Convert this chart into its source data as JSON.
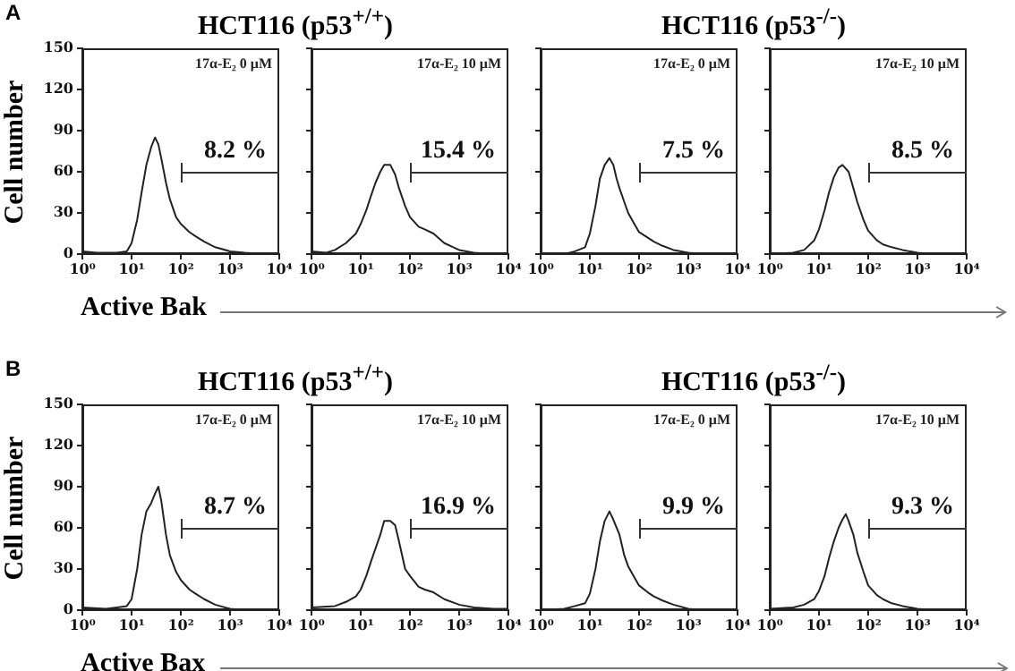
{
  "chart_data": [
    {
      "type": "line",
      "title": "17α-E₂ 0 μM",
      "ylabel": "Cell number",
      "xlabel": "Active Bak",
      "log": "x",
      "xlim": [
        1,
        10000
      ],
      "xticks": [
        {
          "value": 1,
          "label": "10⁰"
        },
        {
          "value": 10,
          "label": "10¹"
        },
        {
          "value": 100,
          "label": "10²"
        },
        {
          "value": 1000,
          "label": "10³"
        },
        {
          "value": 10000,
          "label": "10⁴"
        }
      ],
      "ylim": [
        0,
        150
      ],
      "yticks": [
        0,
        30,
        60,
        90,
        120,
        150
      ],
      "annotations": [
        "A",
        "HCT116 (p53$^{+/+}$)",
        "8.2 %"
      ],
      "x": [
        1,
        2,
        5,
        8,
        10,
        13,
        16,
        20,
        25,
        30,
        35,
        40,
        50,
        60,
        80,
        100,
        150,
        200,
        300,
        500,
        1000,
        2000,
        5000,
        10000
      ],
      "series": [
        {
          "color": "#222222",
          "values": [
            2,
            1,
            1,
            2,
            8,
            25,
            45,
            65,
            78,
            85,
            80,
            70,
            52,
            40,
            27,
            22,
            16,
            13,
            9,
            5,
            2,
            1,
            0,
            0
          ]
        }
      ]
    },
    {
      "type": "line",
      "title": "17α-E₂ 10 μM",
      "tick_labels": "x",
      "log": "x",
      "xlim": [
        1,
        10000
      ],
      "xticks": [
        {
          "value": 1,
          "label": "10⁰"
        },
        {
          "value": 10,
          "label": "10¹"
        },
        {
          "value": 100,
          "label": "10²"
        },
        {
          "value": 1000,
          "label": "10³"
        },
        {
          "value": 10000,
          "label": "10⁴"
        }
      ],
      "ylim": [
        0,
        150
      ],
      "yticks": [
        0,
        30,
        60,
        90,
        120,
        150
      ],
      "annotations": [
        "15.4 %"
      ],
      "x": [
        1,
        2,
        3,
        5,
        8,
        10,
        13,
        16,
        20,
        25,
        30,
        40,
        50,
        60,
        80,
        100,
        150,
        200,
        300,
        500,
        1000,
        2000,
        5000,
        10000
      ],
      "series": [
        {
          "color": "#222222",
          "values": [
            2,
            1,
            3,
            8,
            15,
            22,
            32,
            42,
            52,
            60,
            65,
            65,
            58,
            48,
            35,
            27,
            20,
            18,
            15,
            8,
            3,
            1,
            0,
            0
          ]
        }
      ]
    },
    {
      "type": "line",
      "title": "17α-E₂ 0 μM",
      "tick_labels": "x",
      "log": "x",
      "xlim": [
        1,
        10000
      ],
      "xticks": [
        {
          "value": 1,
          "label": "10⁰"
        },
        {
          "value": 10,
          "label": "10¹"
        },
        {
          "value": 100,
          "label": "10²"
        },
        {
          "value": 1000,
          "label": "10³"
        },
        {
          "value": 10000,
          "label": "10⁴"
        }
      ],
      "ylim": [
        0,
        150
      ],
      "yticks": [
        0,
        30,
        60,
        90,
        120,
        150
      ],
      "annotations": [
        "HCT116 (p53$^{-/-}$)",
        "7.5 %"
      ],
      "x": [
        1,
        3,
        5,
        8,
        10,
        13,
        16,
        20,
        25,
        30,
        35,
        40,
        50,
        60,
        80,
        100,
        150,
        200,
        300,
        500,
        1000,
        2000,
        10000
      ],
      "series": [
        {
          "color": "#222222",
          "values": [
            0,
            0,
            2,
            5,
            15,
            35,
            55,
            65,
            70,
            65,
            55,
            48,
            38,
            30,
            22,
            16,
            12,
            9,
            6,
            3,
            1,
            0,
            0
          ]
        }
      ]
    },
    {
      "type": "line",
      "title": "17α-E₂ 10 μM",
      "tick_labels": "x",
      "log": "x",
      "xlim": [
        1,
        10000
      ],
      "xticks": [
        {
          "value": 1,
          "label": "10⁰"
        },
        {
          "value": 10,
          "label": "10¹"
        },
        {
          "value": 100,
          "label": "10²"
        },
        {
          "value": 1000,
          "label": "10³"
        },
        {
          "value": 10000,
          "label": "10⁴"
        }
      ],
      "ylim": [
        0,
        150
      ],
      "yticks": [
        0,
        30,
        60,
        90,
        120,
        150
      ],
      "annotations": [
        "8.5 %"
      ],
      "x": [
        1,
        3,
        5,
        8,
        10,
        13,
        16,
        20,
        25,
        30,
        40,
        50,
        60,
        80,
        100,
        150,
        200,
        300,
        500,
        1000,
        2000,
        10000
      ],
      "series": [
        {
          "color": "#222222",
          "values": [
            0,
            1,
            3,
            10,
            18,
            32,
            45,
            56,
            63,
            65,
            60,
            48,
            38,
            25,
            17,
            10,
            7,
            5,
            3,
            1,
            0,
            0
          ]
        }
      ]
    },
    {
      "type": "line",
      "title": "17α-E₂ 0 μM",
      "ylabel": "Cell number",
      "xlabel": "Active Bax",
      "log": "x",
      "xlim": [
        1,
        10000
      ],
      "xticks": [
        {
          "value": 1,
          "label": "10⁰"
        },
        {
          "value": 10,
          "label": "10¹"
        },
        {
          "value": 100,
          "label": "10²"
        },
        {
          "value": 1000,
          "label": "10³"
        },
        {
          "value": 10000,
          "label": "10⁴"
        }
      ],
      "ylim": [
        0,
        150
      ],
      "yticks": [
        0,
        30,
        60,
        90,
        120,
        150
      ],
      "annotations": [
        "B",
        "HCT116 (p53$^{+/+}$)",
        "8.7 %"
      ],
      "x": [
        1,
        3,
        5,
        8,
        10,
        13,
        16,
        20,
        25,
        30,
        35,
        40,
        50,
        60,
        80,
        100,
        150,
        200,
        300,
        500,
        1000,
        2000,
        10000
      ],
      "series": [
        {
          "color": "#222222",
          "values": [
            2,
            1,
            2,
            3,
            8,
            30,
            55,
            72,
            78,
            85,
            90,
            80,
            55,
            40,
            28,
            22,
            15,
            12,
            8,
            4,
            1,
            0,
            0
          ]
        }
      ]
    },
    {
      "type": "line",
      "title": "17α-E₂ 10 μM",
      "tick_labels": "x",
      "log": "x",
      "xlim": [
        1,
        10000
      ],
      "xticks": [
        {
          "value": 1,
          "label": "10⁰"
        },
        {
          "value": 10,
          "label": "10¹"
        },
        {
          "value": 100,
          "label": "10²"
        },
        {
          "value": 1000,
          "label": "10³"
        },
        {
          "value": 10000,
          "label": "10⁴"
        }
      ],
      "ylim": [
        0,
        150
      ],
      "yticks": [
        0,
        30,
        60,
        90,
        120,
        150
      ],
      "annotations": [
        "16.9 %"
      ],
      "x": [
        1,
        3,
        5,
        8,
        10,
        13,
        16,
        20,
        25,
        30,
        40,
        50,
        60,
        80,
        100,
        150,
        200,
        300,
        500,
        1000,
        2000,
        5000,
        10000
      ],
      "series": [
        {
          "color": "#222222",
          "values": [
            2,
            3,
            6,
            10,
            15,
            25,
            35,
            45,
            55,
            65,
            65,
            62,
            50,
            30,
            25,
            17,
            15,
            13,
            8,
            4,
            2,
            1,
            1
          ]
        }
      ]
    },
    {
      "type": "line",
      "title": "17α-E₂ 0 μM",
      "tick_labels": "x",
      "log": "x",
      "xlim": [
        1,
        10000
      ],
      "xticks": [
        {
          "value": 1,
          "label": "10⁰"
        },
        {
          "value": 10,
          "label": "10¹"
        },
        {
          "value": 100,
          "label": "10²"
        },
        {
          "value": 1000,
          "label": "10³"
        },
        {
          "value": 10000,
          "label": "10⁴"
        }
      ],
      "ylim": [
        0,
        150
      ],
      "yticks": [
        0,
        30,
        60,
        90,
        120,
        150
      ],
      "annotations": [
        "HCT116 (p53$^{-/-}$)",
        "9.9 %"
      ],
      "x": [
        1,
        3,
        5,
        8,
        10,
        13,
        16,
        20,
        25,
        30,
        40,
        50,
        60,
        80,
        100,
        150,
        200,
        300,
        500,
        1000,
        2000,
        10000
      ],
      "series": [
        {
          "color": "#222222",
          "values": [
            0,
            1,
            3,
            5,
            12,
            30,
            50,
            65,
            72,
            66,
            55,
            40,
            32,
            24,
            18,
            13,
            10,
            7,
            4,
            1,
            0,
            0
          ]
        }
      ]
    },
    {
      "type": "line",
      "title": "17α-E₂ 10 μM",
      "tick_labels": "x",
      "log": "x",
      "xlim": [
        1,
        10000
      ],
      "xticks": [
        {
          "value": 1,
          "label": "10⁰"
        },
        {
          "value": 10,
          "label": "10¹"
        },
        {
          "value": 100,
          "label": "10²"
        },
        {
          "value": 1000,
          "label": "10³"
        },
        {
          "value": 10000,
          "label": "10⁴"
        }
      ],
      "ylim": [
        0,
        150
      ],
      "yticks": [
        0,
        30,
        60,
        90,
        120,
        150
      ],
      "annotations": [
        "9.3 %"
      ],
      "x": [
        1,
        3,
        5,
        8,
        10,
        13,
        16,
        20,
        25,
        30,
        35,
        40,
        50,
        60,
        80,
        100,
        150,
        200,
        300,
        500,
        1000,
        2000,
        10000
      ],
      "series": [
        {
          "color": "#222222",
          "values": [
            1,
            2,
            4,
            8,
            14,
            25,
            38,
            50,
            60,
            66,
            70,
            65,
            55,
            42,
            28,
            18,
            11,
            8,
            5,
            3,
            1,
            0,
            0
          ]
        }
      ]
    }
  ]
}
